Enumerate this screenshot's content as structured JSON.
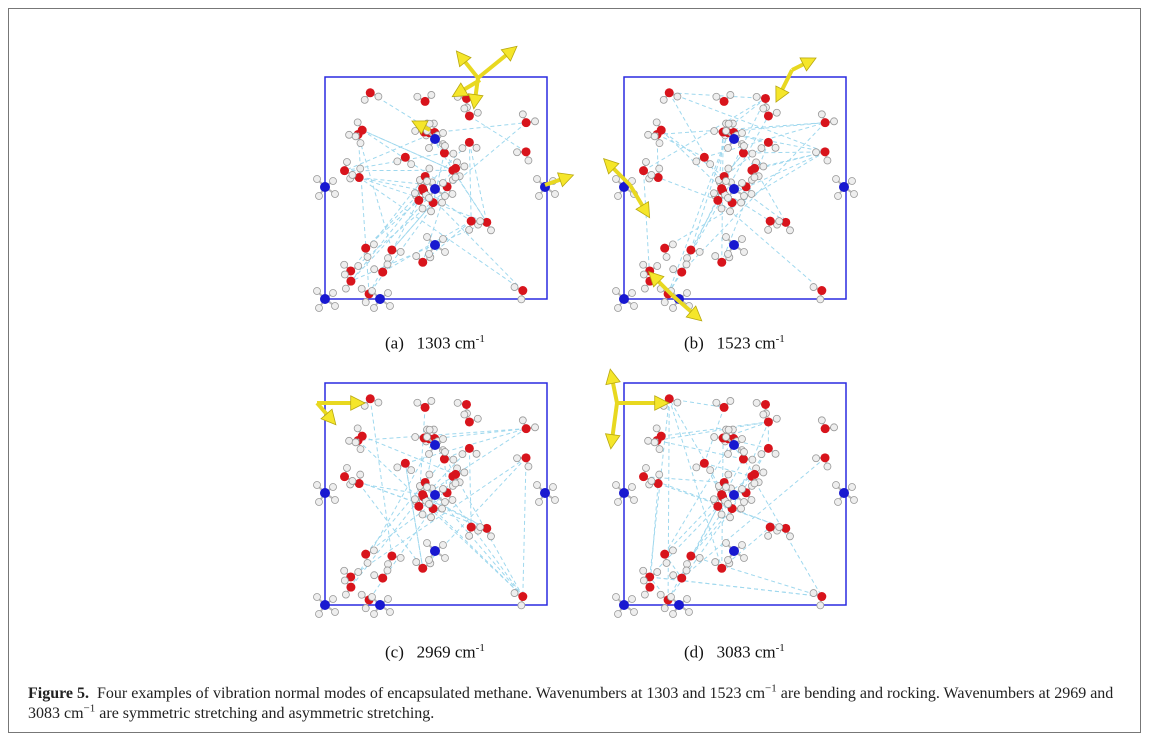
{
  "figure": {
    "panels": [
      {
        "label": "(a)",
        "value": "1303 cm",
        "sup": "-1"
      },
      {
        "label": "(b)",
        "value": "1523 cm",
        "sup": "-1"
      },
      {
        "label": "(c)",
        "value": "2969 cm",
        "sup": "-1"
      },
      {
        "label": "(d)",
        "value": "3083 cm",
        "sup": "-1"
      }
    ],
    "caption": {
      "label": "Figure 5.",
      "parts": [
        "Four examples of vibration normal modes of encapsulated methane. Wavenumbers at 1303 and 1523 cm",
        "−1",
        " are bending and rocking. Wavenumbers at 2969 and 3083 cm",
        "−1",
        " are symmetric stretching and asymmetric stretching."
      ]
    }
  }
}
